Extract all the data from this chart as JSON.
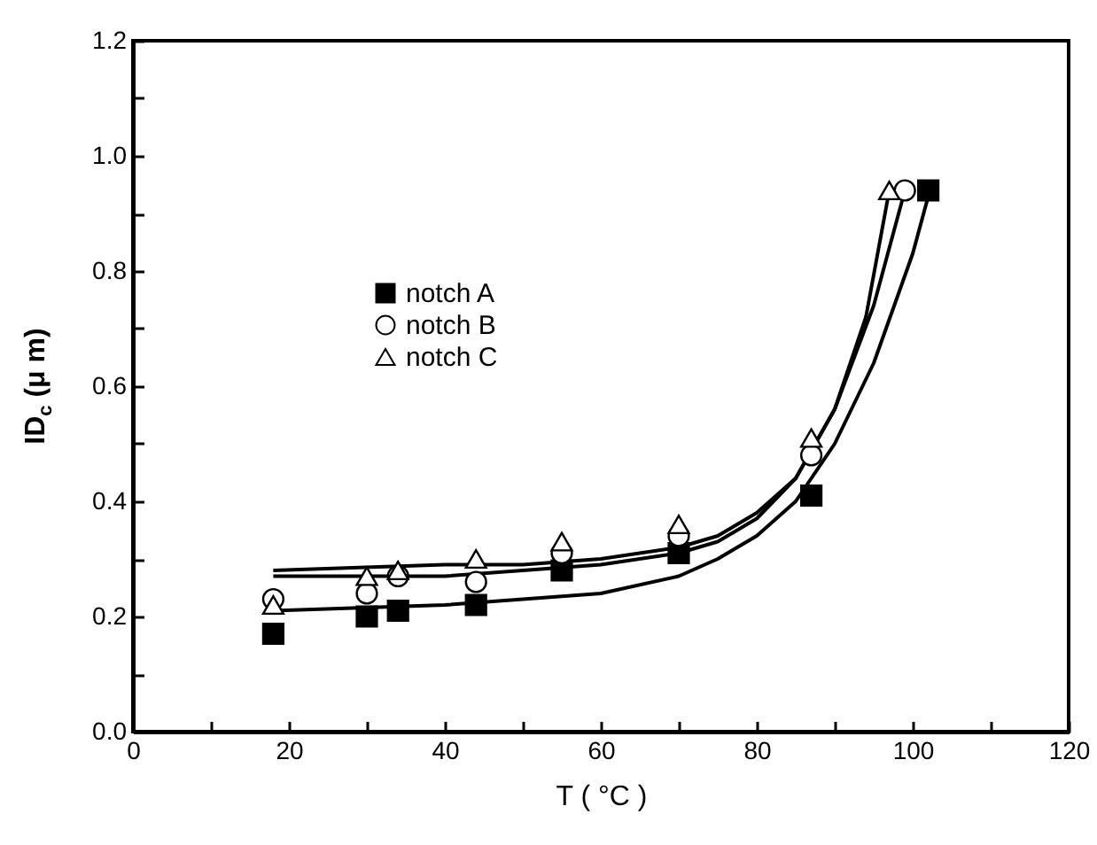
{
  "chart_data": {
    "type": "scatter",
    "xlabel": "T ( °C )",
    "ylabel": "ID$_{c}$ (μ m)",
    "xlim": [
      0,
      120
    ],
    "ylim": [
      0,
      1.2
    ],
    "xticks": [
      0,
      {
        "value": 10,
        "label": null
      },
      20,
      {
        "value": 30,
        "label": null
      },
      40,
      {
        "value": 50,
        "label": null
      },
      60,
      {
        "value": 70,
        "label": null
      },
      80,
      {
        "value": 90,
        "label": null
      },
      100,
      {
        "value": 110,
        "label": null
      },
      120
    ],
    "yticks": [
      {
        "value": 0,
        "label": "0.0"
      },
      {
        "value": 0.1,
        "label": null
      },
      {
        "value": 0.2,
        "label": "0.2"
      },
      {
        "value": 0.3,
        "label": null
      },
      {
        "value": 0.4,
        "label": "0.4"
      },
      {
        "value": 0.5,
        "label": null
      },
      {
        "value": 0.6,
        "label": "0.6"
      },
      {
        "value": 0.7,
        "label": null
      },
      {
        "value": 0.8,
        "label": "0.8"
      },
      {
        "value": 0.9,
        "label": null
      },
      {
        "value": 1.0,
        "label": "1.0"
      },
      {
        "value": 1.1,
        "label": null
      },
      {
        "value": 1.2,
        "label": "1.2"
      }
    ],
    "legend": "top left",
    "series": [
      {
        "name": "notch A",
        "marker": "square",
        "color": "#000000",
        "x": [
          18,
          30,
          34,
          44,
          55,
          70,
          87,
          102
        ],
        "values": [
          0.17,
          0.2,
          0.21,
          0.22,
          0.28,
          0.31,
          0.41,
          0.94
        ]
      },
      {
        "name": "notch B",
        "marker": "circle",
        "color": "#000000",
        "x": [
          18,
          30,
          34,
          44,
          55,
          70,
          87,
          99
        ],
        "values": [
          0.23,
          0.24,
          0.27,
          0.26,
          0.31,
          0.34,
          0.48,
          0.94
        ]
      },
      {
        "name": "notch C",
        "marker": "triangle",
        "color": "#000000",
        "x": [
          18,
          30,
          34,
          44,
          55,
          70,
          87,
          97
        ],
        "values": [
          0.22,
          0.27,
          0.28,
          0.3,
          0.33,
          0.36,
          0.51,
          0.94
        ]
      },
      {
        "type": "line",
        "marker": "none",
        "color": "#000000",
        "x": [
          18,
          40,
          50,
          60,
          70,
          75,
          80,
          85,
          90,
          95,
          100,
          102
        ],
        "values": [
          0.21,
          0.22,
          0.23,
          0.24,
          0.27,
          0.3,
          0.34,
          0.4,
          0.5,
          0.64,
          0.83,
          0.93
        ]
      },
      {
        "type": "line",
        "marker": "none",
        "color": "#000000",
        "x": [
          18,
          40,
          50,
          60,
          70,
          75,
          80,
          85,
          90,
          95,
          99
        ],
        "values": [
          0.27,
          0.27,
          0.28,
          0.29,
          0.31,
          0.33,
          0.37,
          0.44,
          0.56,
          0.74,
          0.94
        ]
      },
      {
        "type": "line",
        "marker": "none",
        "color": "#000000",
        "x": [
          18,
          40,
          50,
          60,
          70,
          75,
          80,
          85,
          90,
          94,
          97
        ],
        "values": [
          0.28,
          0.29,
          0.29,
          0.3,
          0.32,
          0.34,
          0.38,
          0.44,
          0.56,
          0.72,
          0.94
        ]
      }
    ]
  }
}
